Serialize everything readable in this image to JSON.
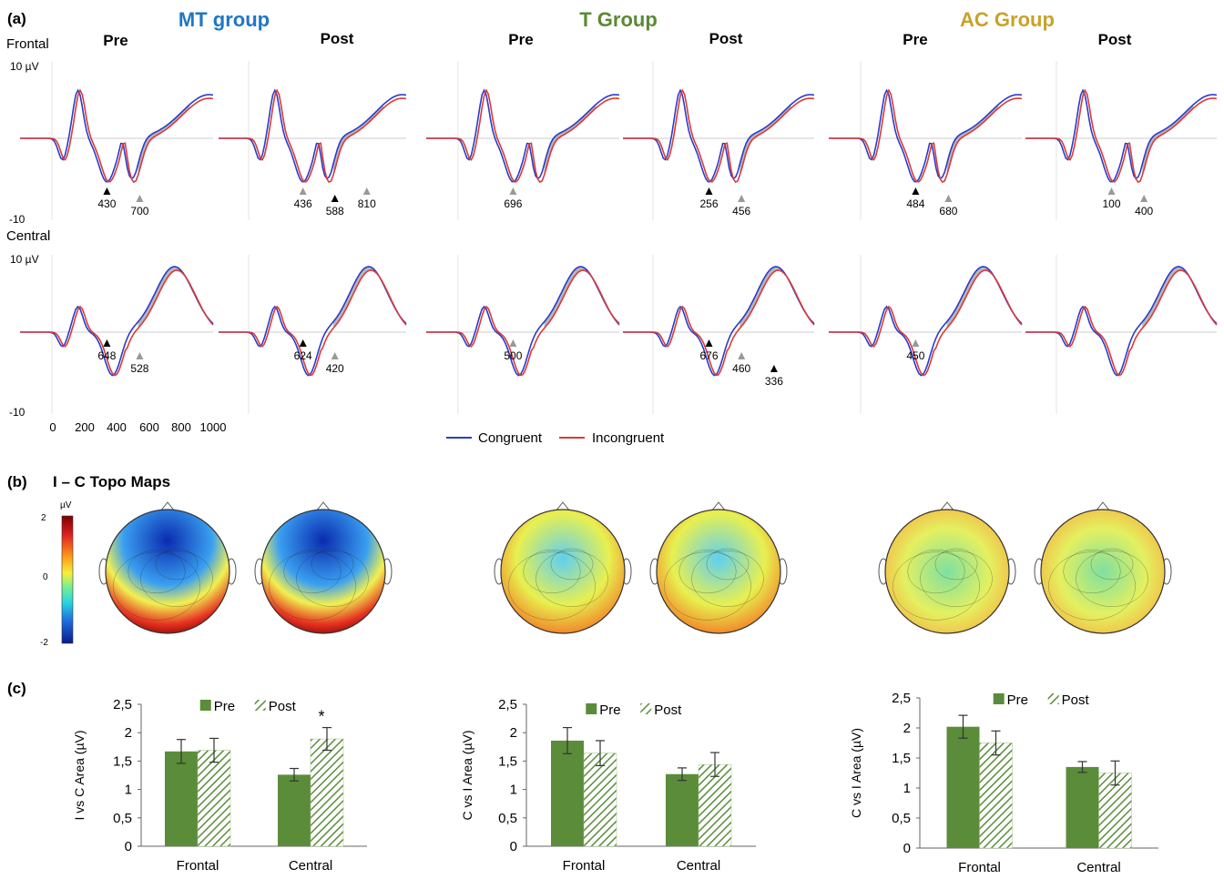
{
  "panels": {
    "a": "(a)",
    "b": "(b)",
    "c": "(c)"
  },
  "groups": [
    {
      "name": "MT group",
      "color": "#1f77c4"
    },
    {
      "name": "T Group",
      "color": "#5a8a32"
    },
    {
      "name": "AC Group",
      "color": "#c9a227"
    }
  ],
  "sessions": [
    "Pre",
    "Post"
  ],
  "regions": [
    "Frontal",
    "Central"
  ],
  "erp_axis": {
    "ymax_label": "10 µV",
    "ymin_label": "-10",
    "xticks": [
      "0",
      "200",
      "400",
      "600",
      "800",
      "1000"
    ]
  },
  "legend": {
    "congruent": "Congruent",
    "incongruent": "Incongruent",
    "congruent_color": "#2b3cc9",
    "incongruent_color": "#d83b3b"
  },
  "erp_peaks": [
    {
      "group": "MT group",
      "session": "Pre",
      "region": "Frontal",
      "labels": [
        {
          "text": "430",
          "marker": "black"
        },
        {
          "text": "700",
          "marker": "gray"
        }
      ]
    },
    {
      "group": "MT group",
      "session": "Post",
      "region": "Frontal",
      "labels": [
        {
          "text": "436",
          "marker": "gray"
        },
        {
          "text": "588",
          "marker": "black"
        },
        {
          "text": "810",
          "marker": "gray"
        }
      ]
    },
    {
      "group": "T Group",
      "session": "Pre",
      "region": "Frontal",
      "labels": [
        {
          "text": "696",
          "marker": "gray"
        }
      ]
    },
    {
      "group": "T Group",
      "session": "Post",
      "region": "Frontal",
      "labels": [
        {
          "text": "256",
          "marker": "black"
        },
        {
          "text": "456",
          "marker": "gray"
        }
      ]
    },
    {
      "group": "AC Group",
      "session": "Pre",
      "region": "Frontal",
      "labels": [
        {
          "text": "484",
          "marker": "black"
        },
        {
          "text": "680",
          "marker": "gray"
        }
      ]
    },
    {
      "group": "AC Group",
      "session": "Post",
      "region": "Frontal",
      "labels": [
        {
          "text": "100",
          "marker": "gray"
        },
        {
          "text": "400",
          "marker": "gray"
        }
      ]
    },
    {
      "group": "MT group",
      "session": "Pre",
      "region": "Central",
      "labels": [
        {
          "text": "648",
          "marker": "black"
        },
        {
          "text": "528",
          "marker": "gray"
        }
      ]
    },
    {
      "group": "MT group",
      "session": "Post",
      "region": "Central",
      "labels": [
        {
          "text": "624",
          "marker": "black"
        },
        {
          "text": "420",
          "marker": "gray"
        }
      ]
    },
    {
      "group": "T Group",
      "session": "Pre",
      "region": "Central",
      "labels": [
        {
          "text": "500",
          "marker": "gray"
        }
      ]
    },
    {
      "group": "T Group",
      "session": "Post",
      "region": "Central",
      "labels": [
        {
          "text": "676",
          "marker": "black"
        },
        {
          "text": "460",
          "marker": "gray"
        },
        {
          "text": "336",
          "marker": "black"
        }
      ]
    },
    {
      "group": "AC Group",
      "session": "Pre",
      "region": "Central",
      "labels": [
        {
          "text": "450",
          "marker": "gray"
        }
      ]
    },
    {
      "group": "AC Group",
      "session": "Post",
      "region": "Central",
      "labels": []
    }
  ],
  "topo": {
    "title": "I – C Topo Maps",
    "unit": "µV",
    "scale_labels": [
      "2",
      "0",
      "-2"
    ]
  },
  "bar_legend": {
    "pre": "Pre",
    "post": "Post",
    "color": "#5b8c3a"
  },
  "chart_data": [
    {
      "type": "bar",
      "ylabel": "I vs C Area (µV)",
      "ylim": [
        0,
        2.5
      ],
      "yticks": [
        "0",
        "0,5",
        "1",
        "1,5",
        "2",
        "2,5"
      ],
      "categories": [
        "Frontal",
        "Central"
      ],
      "series": [
        {
          "name": "Pre",
          "values": [
            1.67,
            1.26
          ],
          "errors": [
            0.21,
            0.11
          ]
        },
        {
          "name": "Post",
          "values": [
            1.69,
            1.89
          ],
          "errors": [
            0.21,
            0.2
          ]
        }
      ],
      "annotation": "*"
    },
    {
      "type": "bar",
      "ylabel": "C vs I Area (µV)",
      "ylim": [
        0,
        2.5
      ],
      "yticks": [
        "0",
        "0,5",
        "1",
        "1,5",
        "2",
        "2,5"
      ],
      "categories": [
        "Frontal",
        "Central"
      ],
      "series": [
        {
          "name": "Pre",
          "values": [
            1.86,
            1.27
          ],
          "errors": [
            0.23,
            0.11
          ]
        },
        {
          "name": "Post",
          "values": [
            1.64,
            1.44
          ],
          "errors": [
            0.22,
            0.21
          ]
        }
      ]
    },
    {
      "type": "bar",
      "ylabel": "C vs I Area (µV)",
      "ylim": [
        0,
        2.5
      ],
      "yticks": [
        "0",
        "0,5",
        "1",
        "1,5",
        "2",
        "2,5"
      ],
      "categories": [
        "Frontal",
        "Central"
      ],
      "series": [
        {
          "name": "Pre",
          "values": [
            2.02,
            1.35
          ],
          "errors": [
            0.19,
            0.09
          ]
        },
        {
          "name": "Post",
          "values": [
            1.75,
            1.25
          ],
          "errors": [
            0.2,
            0.2
          ]
        }
      ]
    }
  ]
}
